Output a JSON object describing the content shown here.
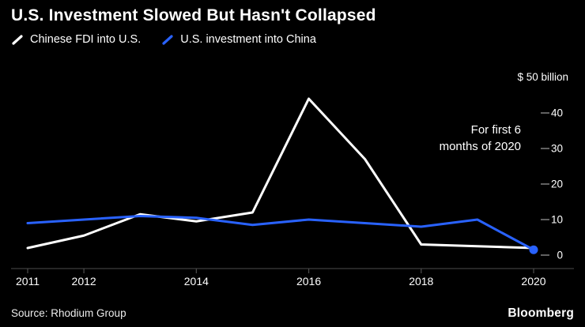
{
  "header": {
    "title": "U.S. Investment Slowed But Hasn't Collapsed"
  },
  "legend": [
    {
      "label": "Chinese FDI into U.S.",
      "color": "#ffffff"
    },
    {
      "label": "U.S. investment into China",
      "color": "#2962ff"
    }
  ],
  "colors": {
    "background": "#000000",
    "axis": "#4d4d4d",
    "tick_dash": "#8a8a8a",
    "text": "#ffffff"
  },
  "chart_data": {
    "type": "line",
    "x": [
      2011,
      2012,
      2013,
      2014,
      2015,
      2016,
      2017,
      2018,
      2019,
      2020
    ],
    "series": [
      {
        "name": "Chinese FDI into U.S.",
        "color": "#ffffff",
        "values": [
          2,
          5.5,
          11.5,
          9.5,
          12,
          44,
          27,
          3,
          2.5,
          2
        ]
      },
      {
        "name": "U.S. investment into China",
        "color": "#2962ff",
        "values": [
          9,
          10,
          11,
          10.5,
          8.5,
          10,
          9,
          8,
          10,
          1.5
        ]
      }
    ],
    "unit_label": "$ 50 billion",
    "ylim": [
      0,
      50
    ],
    "yticks": [
      0,
      10,
      20,
      30,
      40
    ],
    "xticks": [
      2011,
      2012,
      2014,
      2016,
      2018,
      2020
    ],
    "annotation": "For first 6\nmonths of 2020",
    "endpoint_dot": {
      "series": "U.S. investment into China",
      "x": 2020,
      "value": 1.5
    },
    "grid": "off",
    "legend_position": "top-left",
    "y_axis_side": "right"
  },
  "footer": {
    "source": "Source: Rhodium Group",
    "brand": "Bloomberg"
  }
}
